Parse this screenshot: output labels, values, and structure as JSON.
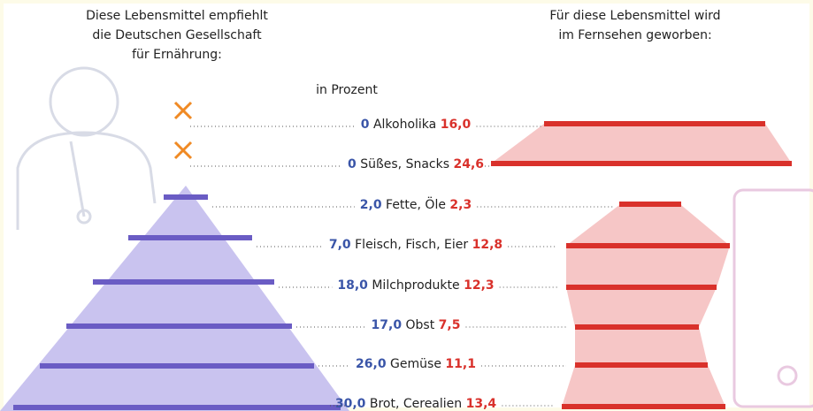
{
  "left_title": [
    "Diese Lebensmittel empfiehlt",
    "die Deutschen Gesellschaft",
    "für Ernährung:"
  ],
  "right_title": [
    "Für diese Lebensmittel wird",
    "im Fernsehen geworben:"
  ],
  "unit": "in Prozent",
  "rows": [
    {
      "recommended": "0",
      "name": "Alkoholika",
      "advertised": "16,0"
    },
    {
      "recommended": "0",
      "name": "Süßes, Snacks",
      "advertised": "24,6"
    },
    {
      "recommended": "2,0",
      "name": "Fette, Öle",
      "advertised": "2,3"
    },
    {
      "recommended": "7,0",
      "name": "Fleisch, Fisch, Eier",
      "advertised": "12,8"
    },
    {
      "recommended": "18,0",
      "name": "Milchprodukte",
      "advertised": "12,3"
    },
    {
      "recommended": "17,0",
      "name": "Obst",
      "advertised": "7,5"
    },
    {
      "recommended": "26,0",
      "name": "Gemüse",
      "advertised": "11,1"
    },
    {
      "recommended": "30,0",
      "name": "Brot, Cerealien",
      "advertised": "13,4"
    }
  ]
}
